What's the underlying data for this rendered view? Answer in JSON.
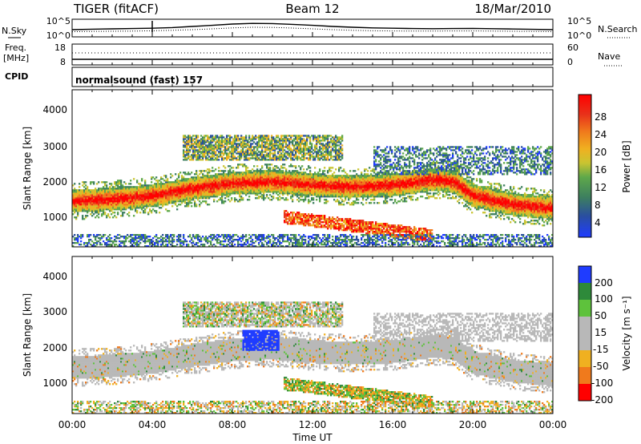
{
  "header": {
    "radar": "TIGER (fitACF)",
    "beam": "Beam 12",
    "date": "18/Mar/2010"
  },
  "info_panels": {
    "nsky": {
      "left_label": "N.Sky",
      "left_ticks": [
        "10^5",
        "10^0"
      ],
      "right_label": "N.Search",
      "right_ticks": [
        "10^5",
        "10^0"
      ],
      "series_solid": [
        0.35,
        0.38,
        0.4,
        0.42,
        0.44,
        0.48,
        0.55,
        0.62,
        0.7,
        0.74,
        0.73,
        0.68,
        0.62,
        0.55,
        0.5,
        0.46,
        0.44,
        0.42,
        0.41,
        0.42,
        0.43,
        0.41,
        0.39,
        0.37,
        0.35
      ],
      "series_dotted": [
        0.22,
        0.24,
        0.25,
        0.26,
        0.28,
        0.31,
        0.35,
        0.4,
        0.46,
        0.5,
        0.49,
        0.45,
        0.4,
        0.35,
        0.31,
        0.28,
        0.27,
        0.26,
        0.26,
        0.27,
        0.27,
        0.26,
        0.25,
        0.24,
        0.22
      ]
    },
    "freq": {
      "left_label_1": "Freq.",
      "left_label_2": "[MHz]",
      "left_ticks": [
        "18",
        "8"
      ],
      "right_label": "Nave",
      "right_ticks": [
        "60",
        "0"
      ]
    },
    "cpid": {
      "label": "CPID",
      "program": "normalsound (fast) 157"
    }
  },
  "panels": {
    "power": {
      "ylabel": "Slant Range [km]",
      "yticks": [
        "4000",
        "3000",
        "2000",
        "1000"
      ],
      "cbar_label": "Power [dB]",
      "cbar_ticks": [
        "28",
        "24",
        "20",
        "16",
        "12",
        "8",
        "4"
      ]
    },
    "velocity": {
      "ylabel": "Slant Range [km]",
      "yticks": [
        "4000",
        "3000",
        "2000",
        "1000"
      ],
      "cbar_label": "Velocity [m s⁻¹]",
      "cbar_ticks": [
        "200",
        "100",
        "50",
        "15",
        "-15",
        "-50",
        "-100",
        "-200"
      ]
    }
  },
  "xaxis": {
    "label": "Time UT",
    "ticks": [
      "00:00",
      "04:00",
      "08:00",
      "12:00",
      "16:00",
      "20:00",
      "00:00"
    ]
  },
  "chart_data": [
    {
      "type": "heatmap",
      "title": "Power",
      "xlabel": "Time UT",
      "ylabel": "Slant Range [km]",
      "xlim": [
        0,
        24
      ],
      "ylim": [
        180,
        4600
      ],
      "colorbar_label": "Power [dB]",
      "colorbar_range": [
        0,
        32
      ],
      "colors": [
        "#1f3cff",
        "#2a4f9f",
        "#3d7f5f",
        "#5ea84a",
        "#c9c431",
        "#f0b020",
        "#f07a1c",
        "#e8321a",
        "#ff0000"
      ],
      "features": [
        {
          "name": "main echo band",
          "x": [
            0,
            2,
            4,
            6,
            8,
            10,
            12,
            14,
            16,
            18,
            19,
            20,
            22,
            24
          ],
          "y_center": [
            1450,
            1500,
            1600,
            1800,
            1950,
            2000,
            1900,
            1850,
            1900,
            2050,
            2000,
            1600,
            1350,
            1250
          ]
        },
        {
          "name": "upper patch",
          "x_range": [
            5.5,
            13.5
          ],
          "y_range": [
            2600,
            3300
          ]
        },
        {
          "name": "lower descending band",
          "x_range": [
            10.5,
            18
          ],
          "y_range": [
            400,
            1100
          ]
        }
      ]
    },
    {
      "type": "heatmap",
      "title": "Velocity",
      "xlabel": "Time UT",
      "ylabel": "Slant Range [km]",
      "xlim": [
        0,
        24
      ],
      "ylim": [
        180,
        4600
      ],
      "colorbar_label": "Velocity [m s⁻¹]",
      "colorbar_range": [
        -250,
        250
      ],
      "colors": [
        "#ff0000",
        "#f07a1c",
        "#f0b020",
        "#b8b8b8",
        "#5ec23c",
        "#2e8a3a",
        "#1f3cff"
      ],
      "features": [
        {
          "name": "ground scatter band",
          "x_range": [
            0,
            24
          ],
          "y_range": [
            900,
            2200
          ],
          "velocity": 0
        },
        {
          "name": "approaching patch",
          "x_range": [
            8.5,
            10.3
          ],
          "y_range": [
            1950,
            2500
          ],
          "velocity": 180
        }
      ]
    }
  ]
}
